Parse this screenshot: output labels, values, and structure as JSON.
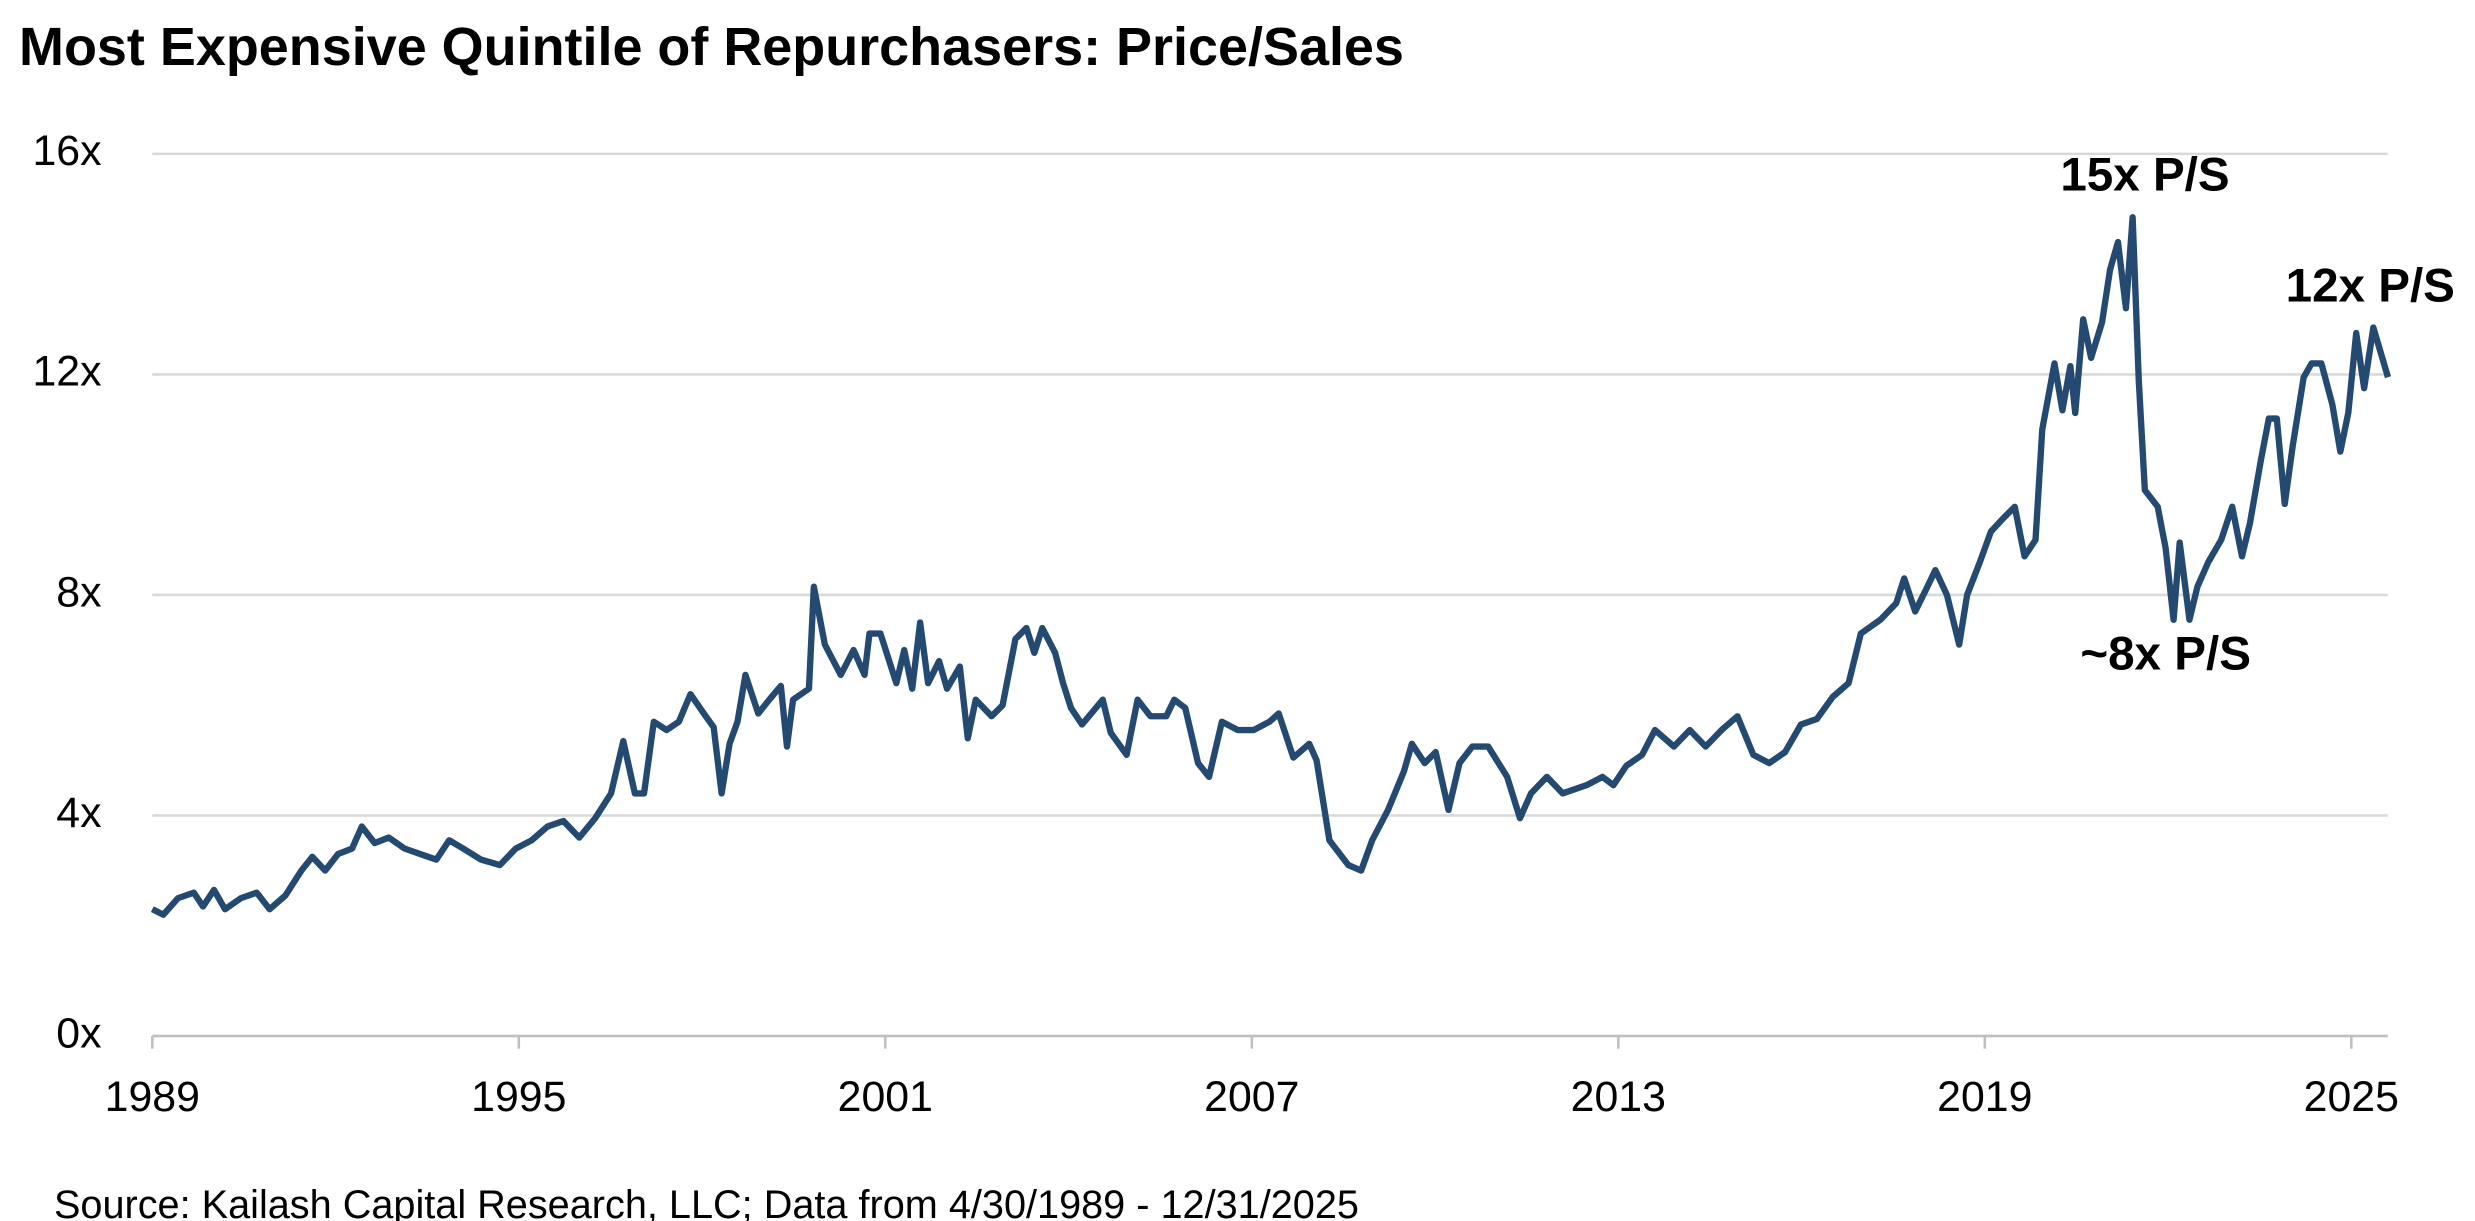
{
  "chart_data": {
    "type": "line",
    "title": "Most Expensive Quintile of Repurchasers: Price/Sales",
    "source": "Source: Kailash Capital Research, LLC; Data from 4/30/1989 - 12/31/2025",
    "annotations": [
      "15x P/S",
      "12x P/S",
      "~8x P/S"
    ],
    "annotation_color": "#c0504d",
    "color": "#254a72",
    "grid": true,
    "xlim": [
      1989,
      2025.7
    ],
    "xticks": [
      1989,
      1995,
      2001,
      2007,
      2013,
      2019,
      2025
    ],
    "ylim": [
      0,
      16
    ],
    "yticks": [
      {
        "value": 0,
        "label": "0x"
      },
      {
        "value": 4,
        "label": "4x"
      },
      {
        "value": 8,
        "label": "8x"
      },
      {
        "value": 12,
        "label": "12x"
      },
      {
        "value": 16,
        "label": "16x"
      }
    ],
    "x": [
      1989.0,
      1989.18,
      1989.42,
      1989.68,
      1989.83,
      1990.01,
      1990.19,
      1990.45,
      1990.71,
      1990.92,
      1991.18,
      1991.44,
      1991.62,
      1991.83,
      1992.04,
      1992.27,
      1992.43,
      1992.64,
      1992.87,
      1993.13,
      1993.39,
      1993.65,
      1993.86,
      1994.09,
      1994.38,
      1994.69,
      1994.95,
      1995.21,
      1995.47,
      1995.73,
      1995.99,
      1996.25,
      1996.51,
      1996.71,
      1996.9,
      1997.05,
      1997.21,
      1997.42,
      1997.62,
      1997.81,
      1998.06,
      1998.19,
      1998.32,
      1998.45,
      1998.58,
      1998.71,
      1998.92,
      1999.1,
      1999.29,
      1999.39,
      1999.49,
      1999.75,
      1999.83,
      2000.01,
      2000.27,
      2000.48,
      2000.66,
      2000.74,
      2000.92,
      2001.18,
      2001.31,
      2001.44,
      2001.57,
      2001.7,
      2001.88,
      2002.01,
      2002.22,
      2002.35,
      2002.48,
      2002.74,
      2002.92,
      2003.13,
      2003.31,
      2003.44,
      2003.57,
      2003.78,
      2003.91,
      2004.04,
      2004.22,
      2004.56,
      2004.69,
      2004.95,
      2005.13,
      2005.34,
      2005.6,
      2005.73,
      2005.91,
      2006.12,
      2006.3,
      2006.51,
      2006.77,
      2007.03,
      2007.29,
      2007.44,
      2007.68,
      2007.94,
      2008.06,
      2008.27,
      2008.58,
      2008.79,
      2008.97,
      2009.23,
      2009.49,
      2009.62,
      2009.83,
      2010.01,
      2010.22,
      2010.4,
      2010.61,
      2010.87,
      2011.18,
      2011.39,
      2011.57,
      2011.83,
      2012.09,
      2012.48,
      2012.74,
      2012.92,
      2013.13,
      2013.39,
      2013.6,
      2013.91,
      2014.17,
      2014.43,
      2014.69,
      2014.95,
      2015.21,
      2015.47,
      2015.73,
      2015.99,
      2016.25,
      2016.51,
      2016.77,
      2016.97,
      2017.29,
      2017.55,
      2017.68,
      2017.86,
      2018.06,
      2018.19,
      2018.38,
      2018.58,
      2018.71,
      2018.92,
      2019.1,
      2019.31,
      2019.49,
      2019.65,
      2019.83,
      2019.94,
      2020.14,
      2020.27,
      2020.4,
      2020.48,
      2020.61,
      2020.74,
      2020.92,
      2021.05,
      2021.18,
      2021.31,
      2021.42,
      2021.52,
      2021.62,
      2021.83,
      2021.96,
      2022.09,
      2022.19,
      2022.35,
      2022.48,
      2022.66,
      2022.87,
      2023.05,
      2023.21,
      2023.34,
      2023.52,
      2023.65,
      2023.78,
      2023.91,
      2024.04,
      2024.22,
      2024.35,
      2024.51,
      2024.69,
      2024.82,
      2024.95,
      2025.08,
      2025.21,
      2025.36,
      2025.6
    ],
    "values": [
      2.3,
      2.2,
      2.5,
      2.6,
      2.35,
      2.65,
      2.3,
      2.5,
      2.6,
      2.3,
      2.55,
      3.0,
      3.25,
      3.0,
      3.3,
      3.4,
      3.8,
      3.5,
      3.6,
      3.4,
      3.3,
      3.2,
      3.55,
      3.4,
      3.2,
      3.1,
      3.4,
      3.55,
      3.8,
      3.9,
      3.6,
      3.95,
      4.4,
      5.35,
      4.4,
      4.4,
      5.7,
      5.55,
      5.7,
      6.2,
      5.8,
      5.6,
      4.4,
      5.3,
      5.7,
      6.55,
      5.85,
      6.1,
      6.35,
      5.25,
      6.1,
      6.3,
      8.15,
      7.1,
      6.55,
      7.0,
      6.55,
      7.3,
      7.3,
      6.4,
      7.0,
      6.3,
      7.5,
      6.4,
      6.8,
      6.3,
      6.7,
      5.4,
      6.1,
      5.8,
      6.0,
      7.2,
      7.4,
      6.95,
      7.4,
      6.95,
      6.4,
      5.95,
      5.65,
      6.1,
      5.5,
      5.1,
      6.1,
      5.8,
      5.8,
      6.1,
      5.95,
      4.95,
      4.7,
      5.7,
      5.55,
      5.55,
      5.7,
      5.85,
      5.05,
      5.3,
      5.0,
      3.55,
      3.1,
      3.0,
      3.55,
      4.1,
      4.8,
      5.3,
      4.95,
      5.15,
      4.1,
      4.95,
      5.25,
      5.25,
      4.7,
      3.95,
      4.4,
      4.7,
      4.4,
      4.55,
      4.7,
      4.55,
      4.9,
      5.1,
      5.55,
      5.25,
      5.55,
      5.25,
      5.55,
      5.8,
      5.1,
      4.95,
      5.15,
      5.65,
      5.75,
      6.15,
      6.4,
      7.3,
      7.55,
      7.85,
      8.3,
      7.7,
      8.15,
      8.45,
      8.0,
      7.1,
      8.0,
      8.6,
      9.15,
      9.4,
      9.6,
      8.7,
      9.0,
      11.0,
      12.2,
      11.35,
      12.15,
      11.3,
      13.0,
      12.3,
      12.95,
      13.9,
      14.4,
      13.2,
      14.85,
      11.9,
      9.9,
      9.6,
      8.85,
      7.55,
      8.95,
      7.55,
      8.15,
      8.6,
      9.0,
      9.6,
      8.7,
      9.3,
      10.45,
      11.2,
      11.2,
      9.65,
      10.7,
      11.95,
      12.2,
      12.2,
      11.45,
      10.6,
      11.3,
      12.75,
      11.75,
      12.85,
      11.95
    ]
  }
}
